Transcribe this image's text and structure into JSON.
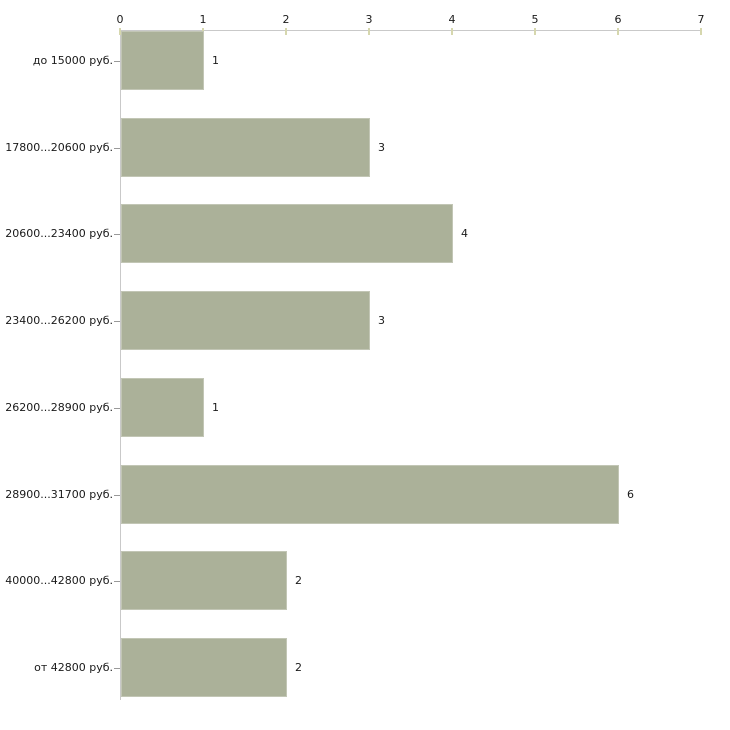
{
  "chart_data": {
    "type": "bar",
    "orientation": "horizontal",
    "title": "",
    "xlabel": "",
    "ylabel": "",
    "categories": [
      "до 15000 руб.",
      "17800...20600 руб.",
      "20600...23400 руб.",
      "23400...26200 руб.",
      "26200...28900 руб.",
      "28900...31700 руб.",
      "40000...42800 руб.",
      "от 42800 руб."
    ],
    "values": [
      1,
      3,
      4,
      3,
      1,
      6,
      2,
      2
    ],
    "value_labels": [
      "1",
      "3",
      "4",
      "3",
      "1",
      "6",
      "2",
      "2"
    ],
    "x_ticks": [
      0,
      1,
      2,
      3,
      4,
      5,
      6,
      7
    ],
    "xlim": [
      0,
      7
    ],
    "axis_position": "top",
    "grid": false,
    "legend": false,
    "colors": {
      "bar_fill": "#abb199",
      "axis_line": "#c9c9c9",
      "tick_mark": "#d6d7ae",
      "category_tick": "#9a9a9a",
      "text": "#1a1a1a",
      "background": "#ffffff"
    }
  }
}
